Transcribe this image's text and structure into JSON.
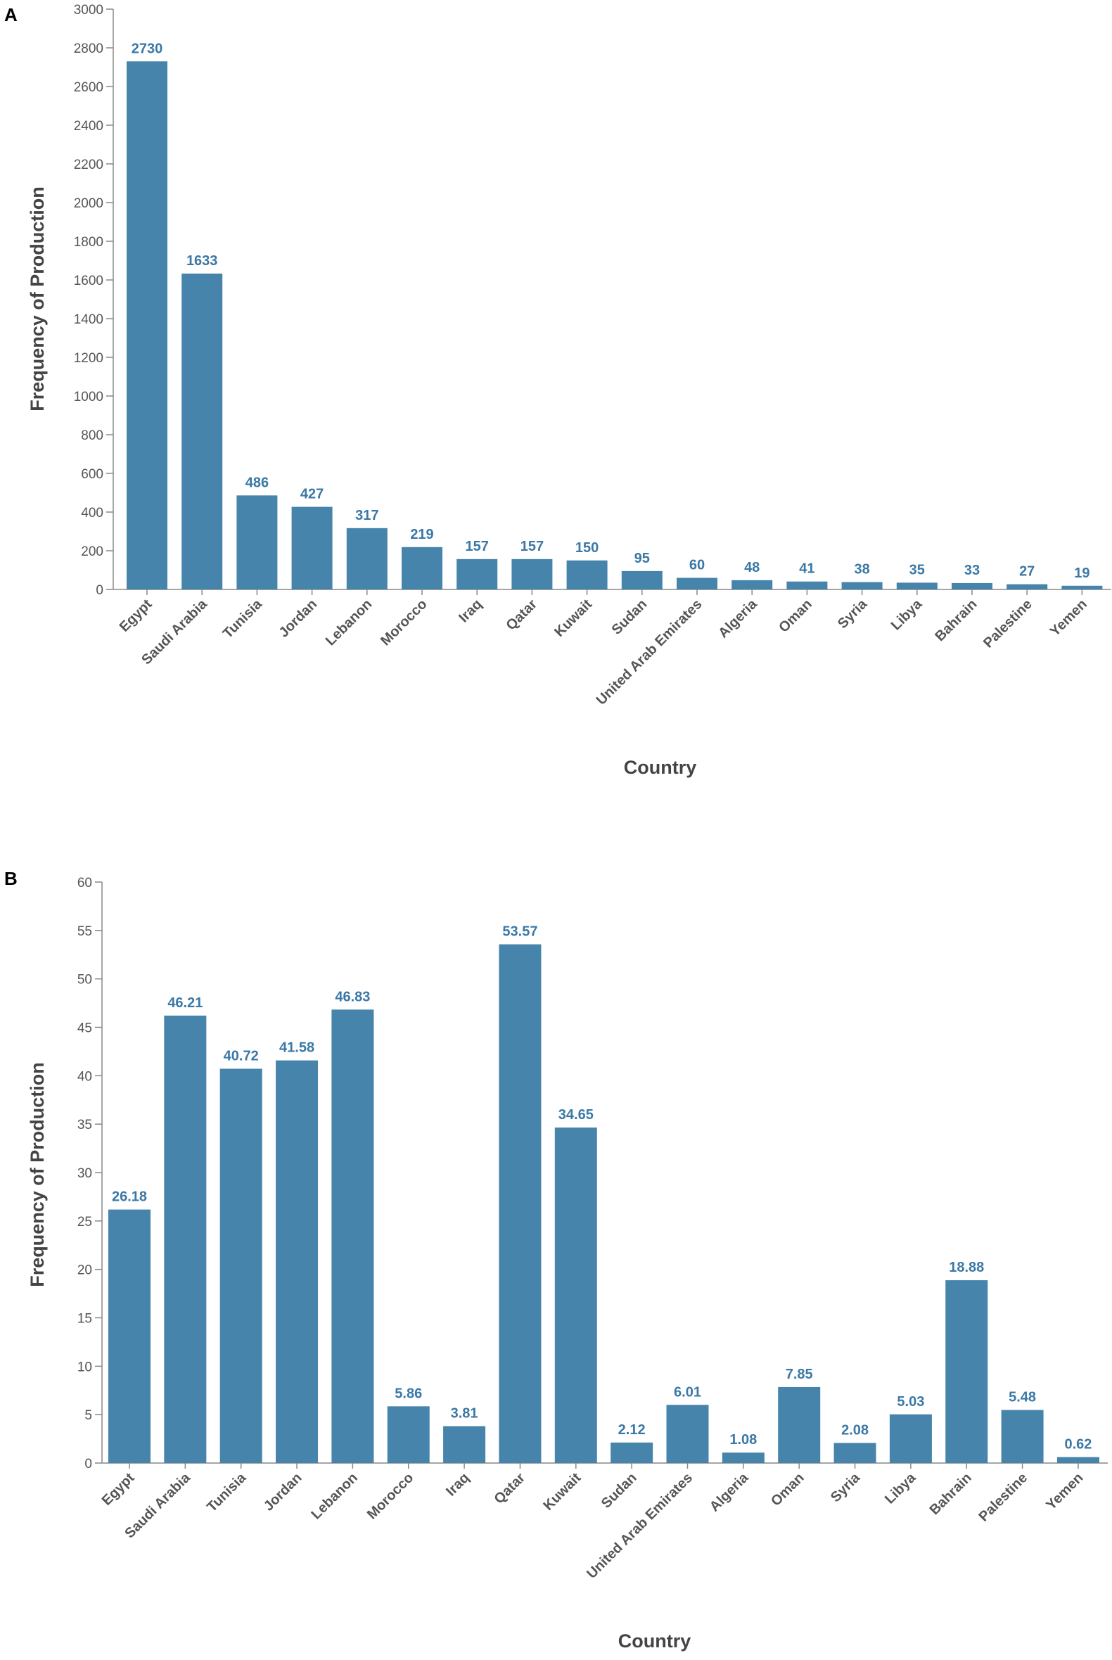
{
  "chart_data": [
    {
      "type": "bar",
      "panel": "A",
      "title": "",
      "xlabel": "Country",
      "ylabel": "Frequency of Production",
      "ylim": [
        0,
        3000
      ],
      "yticks": [
        0,
        200,
        400,
        600,
        800,
        1000,
        1200,
        1400,
        1600,
        1800,
        2000,
        2200,
        2400,
        2600,
        2800,
        3000
      ],
      "categories": [
        "Egypt",
        "Saudi Arabia",
        "Tunisia",
        "Jordan",
        "Lebanon",
        "Morocco",
        "Iraq",
        "Qatar",
        "Kuwait",
        "Sudan",
        "United Arab Emirates",
        "Algeria",
        "Oman",
        "Syria",
        "Libya",
        "Bahrain",
        "Palestine",
        "Yemen"
      ],
      "values": [
        2730,
        1633,
        486,
        427,
        317,
        219,
        157,
        157,
        150,
        95,
        60,
        48,
        41,
        38,
        35,
        33,
        27,
        19
      ],
      "value_labels": [
        "2730",
        "1633",
        "486",
        "427",
        "317",
        "219",
        "157",
        "157",
        "150",
        "95",
        "60",
        "48",
        "41",
        "38",
        "35",
        "33",
        "27",
        "19"
      ],
      "bar_color": "#4684ab",
      "label_color": "#3a78a6",
      "grid": false
    },
    {
      "type": "bar",
      "panel": "B",
      "title": "",
      "xlabel": "Country",
      "ylabel": "Frequency of Production",
      "ylim": [
        0,
        60
      ],
      "yticks": [
        0,
        5,
        10,
        15,
        20,
        25,
        30,
        35,
        40,
        45,
        50,
        55,
        60
      ],
      "categories": [
        "Egypt",
        "Saudi Arabia",
        "Tunisia",
        "Jordan",
        "Lebanon",
        "Morocco",
        "Iraq",
        "Qatar",
        "Kuwait",
        "Sudan",
        "United Arab Emirates",
        "Algeria",
        "Oman",
        "Syria",
        "Libya",
        "Bahrain",
        "Palestine",
        "Yemen"
      ],
      "values": [
        26.18,
        46.21,
        40.72,
        41.58,
        46.83,
        5.86,
        3.81,
        53.57,
        34.65,
        2.12,
        6.01,
        1.08,
        7.85,
        2.08,
        5.03,
        18.88,
        5.48,
        0.62
      ],
      "value_labels": [
        "26.18",
        "46.21",
        "40.72",
        "41.58",
        "46.83",
        "5.86",
        "3.81",
        "53.57",
        "34.65",
        "2.12",
        "6.01",
        "1.08",
        "7.85",
        "2.08",
        "5.03",
        "18.88",
        "5.48",
        "0.62"
      ],
      "bar_color": "#4684ab",
      "label_color": "#3a78a6",
      "grid": false
    }
  ]
}
